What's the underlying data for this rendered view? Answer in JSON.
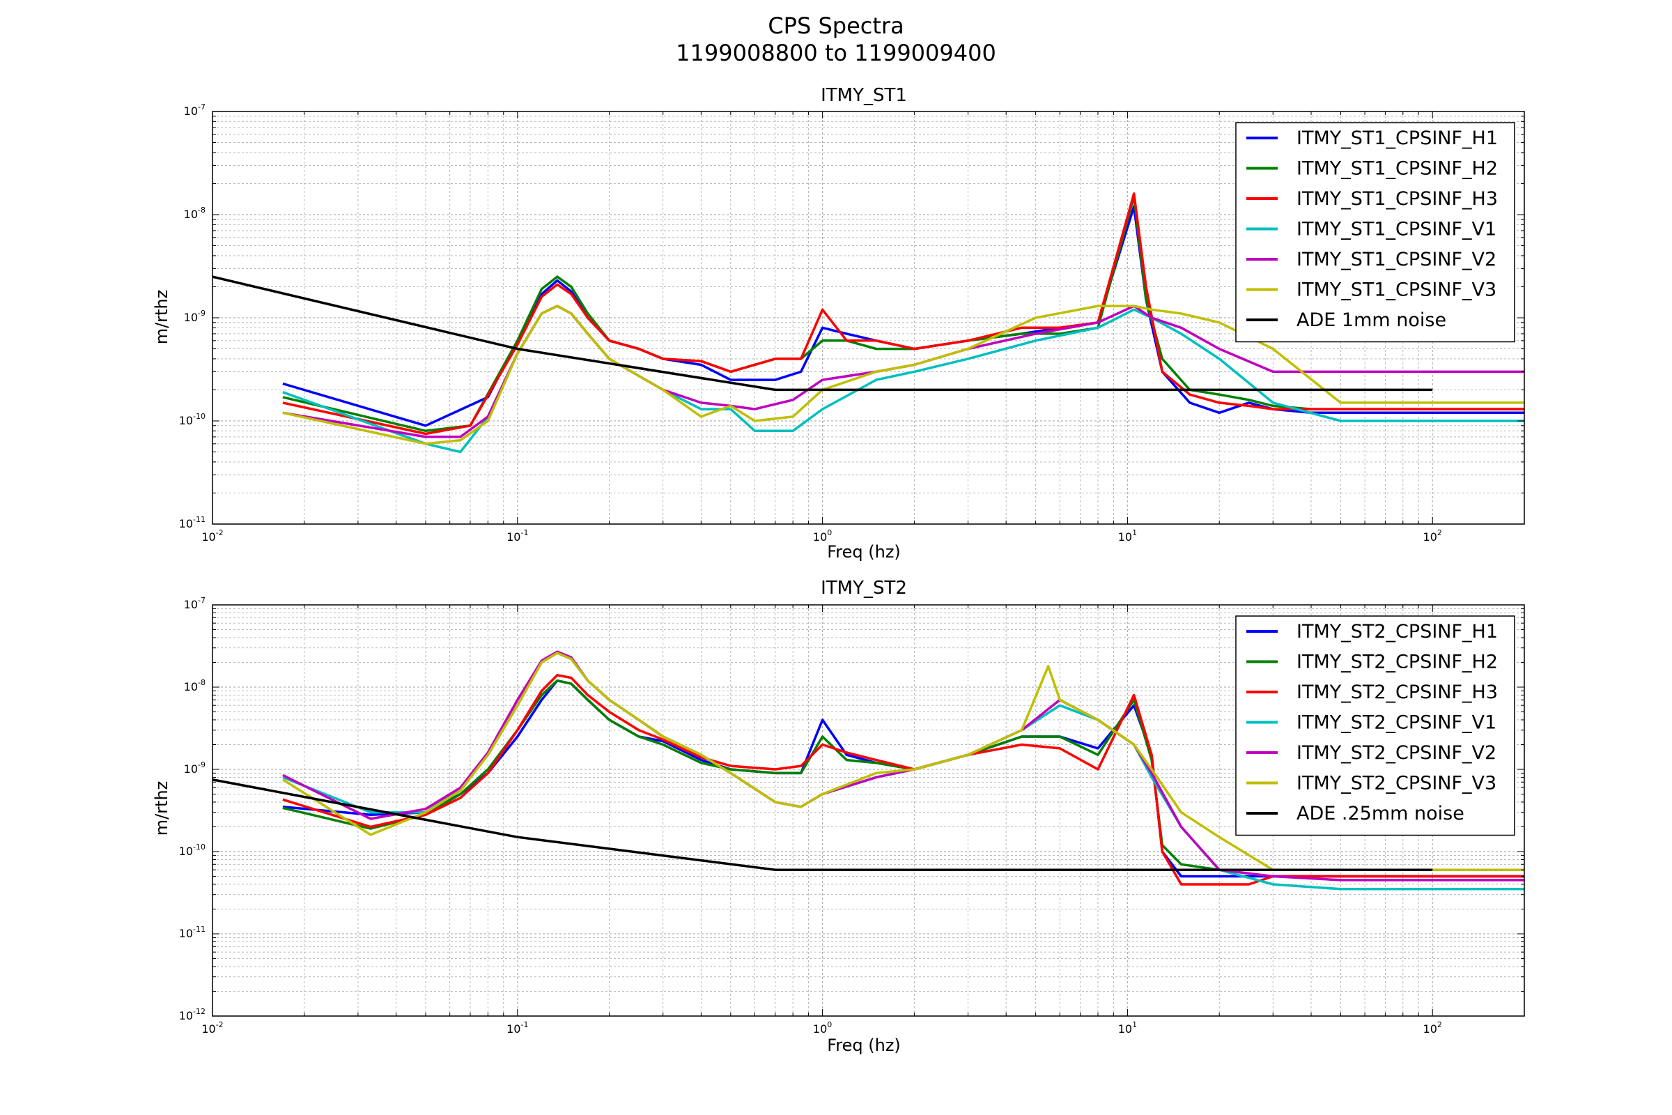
{
  "figure": {
    "title_line1": "CPS Spectra",
    "title_line2": "1199008800 to 1199009400"
  },
  "chart_data": [
    {
      "type": "line",
      "title": "ITMY_ST1",
      "xlabel": "Freq (hz)",
      "ylabel": "m/rthz",
      "xscale": "log",
      "yscale": "log",
      "xlim": [
        0.01,
        200
      ],
      "ylim": [
        1e-11,
        1e-07
      ],
      "grid": true,
      "legend_position": "top-right",
      "x_ticks": [
        {
          "value": 0.01,
          "base": "10",
          "exp": "-2"
        },
        {
          "value": 0.1,
          "base": "10",
          "exp": "-1"
        },
        {
          "value": 1,
          "base": "10",
          "exp": "0"
        },
        {
          "value": 10,
          "base": "10",
          "exp": "1"
        },
        {
          "value": 100,
          "base": "10",
          "exp": "2"
        }
      ],
      "y_ticks": [
        {
          "value": 1e-11,
          "base": "10",
          "exp": "-11"
        },
        {
          "value": 1e-10,
          "base": "10",
          "exp": "-10"
        },
        {
          "value": 1e-09,
          "base": "10",
          "exp": "-9"
        },
        {
          "value": 1e-08,
          "base": "10",
          "exp": "-8"
        },
        {
          "value": 1e-07,
          "base": "10",
          "exp": "-7"
        }
      ],
      "series": [
        {
          "name": "ITMY_ST1_CPSINF_H1",
          "color": "#0000ff",
          "x": [
            0.017,
            0.05,
            0.08,
            0.1,
            0.12,
            0.135,
            0.15,
            0.17,
            0.2,
            0.25,
            0.3,
            0.4,
            0.5,
            0.7,
            0.85,
            1.0,
            1.2,
            1.5,
            2.0,
            3.0,
            4.5,
            6.0,
            8.0,
            10.5,
            11.5,
            13.0,
            16.0,
            20.0,
            25.0,
            30.0,
            40.0,
            60.0,
            100.0,
            200.0
          ],
          "y": [
            2.3e-10,
            9e-11,
            1.7e-10,
            6e-10,
            1.7e-09,
            2.3e-09,
            1.8e-09,
            1e-09,
            6e-10,
            5e-10,
            4e-10,
            3.5e-10,
            2.5e-10,
            2.5e-10,
            3e-10,
            8e-10,
            7e-10,
            6e-10,
            5e-10,
            6e-10,
            7e-10,
            8e-10,
            9e-10,
            1.2e-08,
            1.5e-09,
            3e-10,
            1.5e-10,
            1.2e-10,
            1.5e-10,
            1.3e-10,
            1.2e-10,
            1.2e-10,
            1.2e-10,
            1.2e-10
          ]
        },
        {
          "name": "ITMY_ST1_CPSINF_H2",
          "color": "#008000",
          "x": [
            0.017,
            0.05,
            0.07,
            0.1,
            0.12,
            0.135,
            0.15,
            0.17,
            0.2,
            0.25,
            0.3,
            0.4,
            0.5,
            0.7,
            0.85,
            1.0,
            1.2,
            1.5,
            2.0,
            3.0,
            4.5,
            6.0,
            8.0,
            10.5,
            11.5,
            13.0,
            16.0,
            20.0,
            25.0,
            30.0,
            40.0,
            60.0,
            100.0,
            200.0
          ],
          "y": [
            1.7e-10,
            8e-11,
            9e-11,
            6e-10,
            1.9e-09,
            2.5e-09,
            2e-09,
            1.1e-09,
            6e-10,
            5e-10,
            4e-10,
            3.8e-10,
            3e-10,
            4e-10,
            4e-10,
            6e-10,
            6e-10,
            5e-10,
            5e-10,
            6e-10,
            7e-10,
            7e-10,
            8e-10,
            1.5e-08,
            1.5e-09,
            4e-10,
            2e-10,
            1.8e-10,
            1.6e-10,
            1.4e-10,
            1.3e-10,
            1.3e-10,
            1.3e-10,
            1.3e-10
          ]
        },
        {
          "name": "ITMY_ST1_CPSINF_H3",
          "color": "#ff0000",
          "x": [
            0.017,
            0.05,
            0.07,
            0.1,
            0.12,
            0.135,
            0.15,
            0.17,
            0.2,
            0.25,
            0.3,
            0.4,
            0.5,
            0.7,
            0.85,
            1.0,
            1.2,
            1.5,
            2.0,
            3.0,
            4.5,
            6.0,
            8.0,
            10.5,
            11.5,
            13.0,
            16.0,
            20.0,
            25.0,
            30.0,
            40.0,
            60.0,
            100.0,
            200.0
          ],
          "y": [
            1.5e-10,
            7.5e-11,
            9e-11,
            5.5e-10,
            1.6e-09,
            2.1e-09,
            1.7e-09,
            1e-09,
            6e-10,
            5e-10,
            4e-10,
            3.8e-10,
            3e-10,
            4e-10,
            4e-10,
            1.2e-09,
            6e-10,
            6e-10,
            5e-10,
            6e-10,
            8e-10,
            8e-10,
            9e-10,
            1.6e-08,
            2e-09,
            3e-10,
            1.8e-10,
            1.5e-10,
            1.4e-10,
            1.3e-10,
            1.3e-10,
            1.3e-10,
            1.3e-10,
            1.3e-10
          ]
        },
        {
          "name": "ITMY_ST1_CPSINF_V1",
          "color": "#00bfbf",
          "x": [
            0.017,
            0.05,
            0.065,
            0.08,
            0.1,
            0.12,
            0.135,
            0.15,
            0.17,
            0.2,
            0.3,
            0.4,
            0.5,
            0.6,
            0.8,
            1.0,
            1.5,
            2.0,
            3.0,
            5.0,
            8.0,
            10.5,
            12.0,
            15.0,
            20.0,
            30.0,
            50.0,
            100.0,
            200.0
          ],
          "y": [
            1.9e-10,
            6e-11,
            5e-11,
            1.1e-10,
            4.5e-10,
            1.1e-09,
            1.3e-09,
            1.1e-09,
            7e-10,
            4e-10,
            2e-10,
            1.3e-10,
            1.3e-10,
            8e-11,
            8e-11,
            1.3e-10,
            2.5e-10,
            3e-10,
            4e-10,
            6e-10,
            8e-10,
            1.2e-09,
            1e-09,
            7e-10,
            4e-10,
            1.5e-10,
            1e-10,
            1e-10,
            1e-10
          ]
        },
        {
          "name": "ITMY_ST1_CPSINF_V2",
          "color": "#bf00bf",
          "x": [
            0.017,
            0.05,
            0.065,
            0.08,
            0.1,
            0.12,
            0.135,
            0.15,
            0.17,
            0.2,
            0.3,
            0.4,
            0.5,
            0.6,
            0.8,
            1.0,
            1.5,
            2.0,
            3.0,
            5.0,
            8.0,
            10.5,
            12.0,
            15.0,
            20.0,
            30.0,
            50.0,
            100.0,
            200.0
          ],
          "y": [
            1.2e-10,
            7e-11,
            7e-11,
            1.1e-10,
            4.5e-10,
            1.1e-09,
            1.3e-09,
            1.1e-09,
            7e-10,
            4e-10,
            2e-10,
            1.5e-10,
            1.4e-10,
            1.3e-10,
            1.6e-10,
            2.5e-10,
            3e-10,
            3.5e-10,
            5e-10,
            7e-10,
            9e-10,
            1.3e-09,
            1e-09,
            8e-10,
            5e-10,
            3e-10,
            3e-10,
            3e-10,
            3e-10
          ]
        },
        {
          "name": "ITMY_ST1_CPSINF_V3",
          "color": "#bfbf00",
          "x": [
            0.017,
            0.05,
            0.065,
            0.08,
            0.1,
            0.12,
            0.135,
            0.15,
            0.17,
            0.2,
            0.3,
            0.4,
            0.5,
            0.6,
            0.8,
            1.0,
            1.5,
            2.0,
            3.0,
            5.0,
            8.0,
            10.5,
            12.0,
            15.0,
            20.0,
            30.0,
            50.0,
            100.0,
            200.0
          ],
          "y": [
            1.2e-10,
            6e-11,
            6.5e-11,
            1e-10,
            4.5e-10,
            1.1e-09,
            1.3e-09,
            1.1e-09,
            7e-10,
            4e-10,
            2e-10,
            1.1e-10,
            1.4e-10,
            1e-10,
            1.1e-10,
            2e-10,
            3e-10,
            3.5e-10,
            5e-10,
            1e-09,
            1.3e-09,
            1.3e-09,
            1.2e-09,
            1.1e-09,
            9e-10,
            5e-10,
            1.5e-10,
            1.5e-10,
            1.5e-10
          ]
        },
        {
          "name": "ADE 1mm noise",
          "color": "#000000",
          "x": [
            0.01,
            0.1,
            0.7,
            100
          ],
          "y": [
            2.5e-09,
            5e-10,
            2e-10,
            2e-10
          ]
        }
      ]
    },
    {
      "type": "line",
      "title": "ITMY_ST2",
      "xlabel": "Freq (hz)",
      "ylabel": "m/rthz",
      "xscale": "log",
      "yscale": "log",
      "xlim": [
        0.01,
        200
      ],
      "ylim": [
        1e-12,
        1e-07
      ],
      "grid": true,
      "legend_position": "top-right",
      "x_ticks": [
        {
          "value": 0.01,
          "base": "10",
          "exp": "-2"
        },
        {
          "value": 0.1,
          "base": "10",
          "exp": "-1"
        },
        {
          "value": 1,
          "base": "10",
          "exp": "0"
        },
        {
          "value": 10,
          "base": "10",
          "exp": "1"
        },
        {
          "value": 100,
          "base": "10",
          "exp": "2"
        }
      ],
      "y_ticks": [
        {
          "value": 1e-12,
          "base": "10",
          "exp": "-12"
        },
        {
          "value": 1e-11,
          "base": "10",
          "exp": "-11"
        },
        {
          "value": 1e-10,
          "base": "10",
          "exp": "-10"
        },
        {
          "value": 1e-09,
          "base": "10",
          "exp": "-9"
        },
        {
          "value": 1e-08,
          "base": "10",
          "exp": "-8"
        },
        {
          "value": 1e-07,
          "base": "10",
          "exp": "-7"
        }
      ],
      "series": [
        {
          "name": "ITMY_ST2_CPSINF_H1",
          "color": "#0000ff",
          "x": [
            0.017,
            0.033,
            0.05,
            0.065,
            0.08,
            0.1,
            0.12,
            0.135,
            0.15,
            0.17,
            0.2,
            0.25,
            0.3,
            0.4,
            0.5,
            0.7,
            0.85,
            1.0,
            1.2,
            1.5,
            2.0,
            3.0,
            4.5,
            6.0,
            8.0,
            10.5,
            12.0,
            13.0,
            15.0,
            20.0,
            30.0,
            50.0,
            100.0,
            200.0
          ],
          "y": [
            3.5e-10,
            2.8e-10,
            3e-10,
            5e-10,
            9e-10,
            2.5e-09,
            7e-09,
            1.2e-08,
            1.1e-08,
            7e-09,
            4e-09,
            2.5e-09,
            2.2e-09,
            1.3e-09,
            1e-09,
            9e-10,
            9e-10,
            4e-09,
            1.5e-09,
            1.2e-09,
            1e-09,
            1.5e-09,
            2.5e-09,
            2.5e-09,
            1.8e-09,
            6e-09,
            1.5e-09,
            1e-10,
            5e-11,
            5e-11,
            5e-11,
            5e-11,
            5e-11,
            5e-11
          ]
        },
        {
          "name": "ITMY_ST2_CPSINF_H2",
          "color": "#008000",
          "x": [
            0.017,
            0.033,
            0.05,
            0.065,
            0.08,
            0.1,
            0.12,
            0.135,
            0.15,
            0.17,
            0.2,
            0.25,
            0.3,
            0.4,
            0.5,
            0.7,
            0.85,
            1.0,
            1.2,
            1.5,
            2.0,
            3.0,
            4.5,
            6.0,
            8.0,
            10.5,
            12.0,
            13.0,
            15.0,
            20.0,
            30.0,
            50.0,
            100.0,
            200.0
          ],
          "y": [
            3.4e-10,
            1.9e-10,
            2.8e-10,
            5e-10,
            1e-09,
            3e-09,
            8e-09,
            1.2e-08,
            1.1e-08,
            7e-09,
            4e-09,
            2.5e-09,
            2e-09,
            1.2e-09,
            1e-09,
            9e-10,
            9e-10,
            2.5e-09,
            1.3e-09,
            1.2e-09,
            1e-09,
            1.5e-09,
            2.5e-09,
            2.5e-09,
            1.5e-09,
            7e-09,
            1.3e-09,
            1.2e-10,
            7e-11,
            6e-11,
            6e-11,
            6e-11,
            6e-11,
            6e-11
          ]
        },
        {
          "name": "ITMY_ST2_CPSINF_H3",
          "color": "#ff0000",
          "x": [
            0.017,
            0.033,
            0.05,
            0.065,
            0.08,
            0.1,
            0.12,
            0.135,
            0.15,
            0.17,
            0.2,
            0.25,
            0.3,
            0.4,
            0.5,
            0.7,
            0.85,
            1.0,
            1.2,
            1.5,
            2.0,
            3.0,
            4.5,
            6.0,
            8.0,
            10.5,
            12.0,
            13.0,
            15.0,
            20.0,
            25.0,
            30.0,
            50.0,
            100.0,
            200.0
          ],
          "y": [
            4.3e-10,
            2e-10,
            2.8e-10,
            4.5e-10,
            9e-10,
            3e-09,
            9e-09,
            1.4e-08,
            1.3e-08,
            8e-09,
            5e-09,
            3e-09,
            2.3e-09,
            1.4e-09,
            1.1e-09,
            1e-09,
            1.1e-09,
            2e-09,
            1.6e-09,
            1.3e-09,
            1e-09,
            1.5e-09,
            2e-09,
            1.8e-09,
            1e-09,
            8e-09,
            1.5e-09,
            1e-10,
            4e-11,
            4e-11,
            4e-11,
            5e-11,
            5e-11,
            5e-11,
            5e-11
          ]
        },
        {
          "name": "ITMY_ST2_CPSINF_V1",
          "color": "#00bfbf",
          "x": [
            0.017,
            0.033,
            0.05,
            0.065,
            0.08,
            0.1,
            0.12,
            0.135,
            0.15,
            0.17,
            0.2,
            0.25,
            0.3,
            0.4,
            0.5,
            0.7,
            0.85,
            1.0,
            1.5,
            2.0,
            3.0,
            4.5,
            6.0,
            8.0,
            10.5,
            12.0,
            15.0,
            20.0,
            30.0,
            50.0,
            100.0,
            200.0
          ],
          "y": [
            8e-10,
            3e-10,
            3e-10,
            6e-10,
            1.5e-09,
            6e-09,
            2e-08,
            2.6e-08,
            2.2e-08,
            1.2e-08,
            7e-09,
            4e-09,
            2.5e-09,
            1.5e-09,
            9e-10,
            4e-10,
            3.5e-10,
            5e-10,
            8e-10,
            1e-09,
            1.5e-09,
            3e-09,
            6e-09,
            4e-09,
            2e-09,
            8e-10,
            2e-10,
            6e-11,
            4e-11,
            3.5e-11,
            3.5e-11,
            3.5e-11
          ]
        },
        {
          "name": "ITMY_ST2_CPSINF_V2",
          "color": "#bf00bf",
          "x": [
            0.017,
            0.033,
            0.05,
            0.065,
            0.08,
            0.1,
            0.12,
            0.135,
            0.15,
            0.17,
            0.2,
            0.25,
            0.3,
            0.4,
            0.5,
            0.7,
            0.85,
            1.0,
            1.5,
            2.0,
            3.0,
            4.5,
            6.0,
            8.0,
            10.5,
            12.0,
            15.0,
            20.0,
            30.0,
            50.0,
            100.0,
            200.0
          ],
          "y": [
            8.5e-10,
            2.5e-10,
            3.3e-10,
            6e-10,
            1.6e-09,
            7e-09,
            2.1e-08,
            2.7e-08,
            2.3e-08,
            1.2e-08,
            7e-09,
            4e-09,
            2.5e-09,
            1.5e-09,
            9e-10,
            4e-10,
            3.5e-10,
            5e-10,
            8e-10,
            1e-09,
            1.5e-09,
            3e-09,
            7e-09,
            4e-09,
            2e-09,
            9e-10,
            2e-10,
            6e-11,
            5e-11,
            4.5e-11,
            4.5e-11,
            4.5e-11
          ]
        },
        {
          "name": "ITMY_ST2_CPSINF_V3",
          "color": "#bfbf00",
          "x": [
            0.017,
            0.033,
            0.05,
            0.065,
            0.08,
            0.1,
            0.12,
            0.135,
            0.15,
            0.17,
            0.2,
            0.25,
            0.3,
            0.4,
            0.5,
            0.7,
            0.85,
            1.0,
            1.5,
            2.0,
            3.0,
            4.5,
            5.5,
            6.0,
            8.0,
            10.5,
            12.0,
            15.0,
            20.0,
            30.0,
            50.0,
            100.0,
            200.0
          ],
          "y": [
            7.5e-10,
            1.6e-10,
            3e-10,
            5.5e-10,
            1.5e-09,
            6e-09,
            2e-08,
            2.6e-08,
            2.2e-08,
            1.2e-08,
            7e-09,
            4e-09,
            2.5e-09,
            1.5e-09,
            9e-10,
            4e-10,
            3.5e-10,
            5e-10,
            9e-10,
            1e-09,
            1.5e-09,
            3e-09,
            1.8e-08,
            7e-09,
            4e-09,
            2e-09,
            1e-09,
            3e-10,
            1.5e-10,
            6e-11,
            6e-11,
            6e-11,
            6e-11
          ]
        },
        {
          "name": "ADE .25mm noise",
          "color": "#000000",
          "x": [
            0.01,
            0.1,
            0.7,
            100
          ],
          "y": [
            7.5e-10,
            1.5e-10,
            6e-11,
            6e-11
          ]
        }
      ]
    }
  ]
}
